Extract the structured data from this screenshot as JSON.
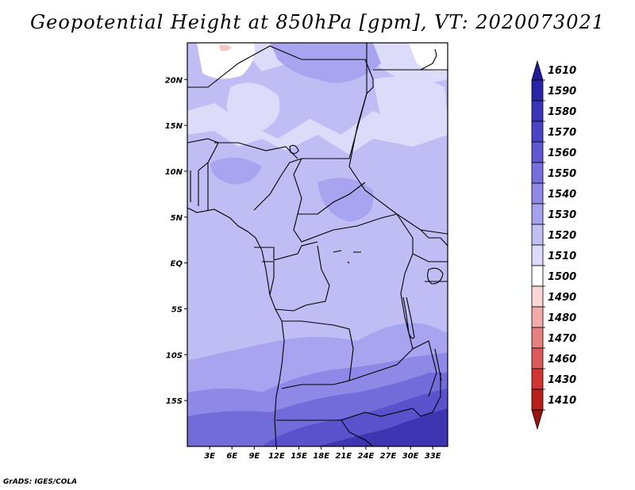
{
  "title": "Geopotential Height at 850hPa [gpm], VT: 2020073021",
  "footer": "GrADS: IGES/COLA",
  "map": {
    "lon_range": [
      0,
      35
    ],
    "lat_range": [
      -20,
      24
    ],
    "lat_ticks": [
      {
        "value": 20,
        "label": "20N"
      },
      {
        "value": 15,
        "label": "15N"
      },
      {
        "value": 10,
        "label": "10N"
      },
      {
        "value": 5,
        "label": "5N"
      },
      {
        "value": 0,
        "label": "EQ"
      },
      {
        "value": -5,
        "label": "5S"
      },
      {
        "value": -10,
        "label": "10S"
      },
      {
        "value": -15,
        "label": "15S"
      }
    ],
    "lon_ticks": [
      {
        "value": 3,
        "label": "3E"
      },
      {
        "value": 6,
        "label": "6E"
      },
      {
        "value": 9,
        "label": "9E"
      },
      {
        "value": 12,
        "label": "12E"
      },
      {
        "value": 15,
        "label": "15E"
      },
      {
        "value": 18,
        "label": "18E"
      },
      {
        "value": 21,
        "label": "21E"
      },
      {
        "value": 24,
        "label": "24E"
      },
      {
        "value": 27,
        "label": "27E"
      },
      {
        "value": 30,
        "label": "30E"
      },
      {
        "value": 33,
        "label": "33E"
      }
    ]
  },
  "colorbar": {
    "levels": [
      "1610",
      "1590",
      "1580",
      "1570",
      "1560",
      "1550",
      "1540",
      "1530",
      "1520",
      "1510",
      "1500",
      "1490",
      "1480",
      "1470",
      "1460",
      "1430",
      "1410"
    ],
    "colors": [
      "#201a9a",
      "#2a24a8",
      "#3a34b8",
      "#4a44c6",
      "#5e58d2",
      "#7670de",
      "#8e88e8",
      "#a6a2ef",
      "#c2bff5",
      "#dddbfa",
      "#ffffff",
      "#fbd6d6",
      "#f2aaaa",
      "#e88080",
      "#de5a5a",
      "#d23434",
      "#b8201c",
      "#9a1410"
    ]
  },
  "field_colors": {
    "light": "#dcdcfa",
    "base": "#c0bdf5",
    "mid": "#a8a4f0",
    "dark1": "#8e88e6",
    "dark2": "#726bda",
    "dark3": "#5a52cc",
    "dark4": "#3c34b0",
    "white": "#ffffff",
    "pink": "#f7c6c6"
  }
}
